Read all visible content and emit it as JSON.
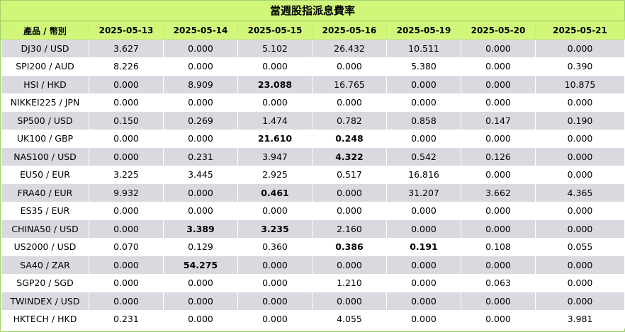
{
  "title": "當週股指派息費率",
  "header": {
    "product": "產品 / 幣別",
    "dates": [
      "2025-05-13",
      "2025-05-14",
      "2025-05-15",
      "2025-05-16",
      "2025-05-19",
      "2025-05-20",
      "2025-05-21"
    ]
  },
  "rows": [
    {
      "product": "DJ30 / USD",
      "values": [
        "3.627",
        "0.000",
        "5.102",
        "26.432",
        "10.511",
        "0.000",
        "0.000"
      ],
      "bold": []
    },
    {
      "product": "SPI200 / AUD",
      "values": [
        "8.226",
        "0.000",
        "0.000",
        "0.000",
        "5.380",
        "0.000",
        "0.390"
      ],
      "bold": []
    },
    {
      "product": "HSI / HKD",
      "values": [
        "0.000",
        "8.909",
        "23.088",
        "16.765",
        "0.000",
        "0.000",
        "10.875"
      ],
      "bold": [
        2
      ]
    },
    {
      "product": "NIKKEI225 / JPN",
      "values": [
        "0.000",
        "0.000",
        "0.000",
        "0.000",
        "0.000",
        "0.000",
        "0.000"
      ],
      "bold": []
    },
    {
      "product": "SP500 / USD",
      "values": [
        "0.150",
        "0.269",
        "1.474",
        "0.782",
        "0.858",
        "0.147",
        "0.190"
      ],
      "bold": []
    },
    {
      "product": "UK100 / GBP",
      "values": [
        "0.000",
        "0.000",
        "21.610",
        "0.248",
        "0.000",
        "0.000",
        "0.000"
      ],
      "bold": [
        2,
        3
      ]
    },
    {
      "product": "NAS100 / USD",
      "values": [
        "0.000",
        "0.231",
        "3.947",
        "4.322",
        "0.542",
        "0.126",
        "0.000"
      ],
      "bold": [
        3
      ]
    },
    {
      "product": "EU50 / EUR",
      "values": [
        "3.225",
        "3.445",
        "2.925",
        "0.517",
        "16.816",
        "0.000",
        "0.000"
      ],
      "bold": []
    },
    {
      "product": "FRA40 / EUR",
      "values": [
        "9.932",
        "0.000",
        "0.461",
        "0.000",
        "31.207",
        "3.662",
        "4.365"
      ],
      "bold": [
        2
      ]
    },
    {
      "product": "ES35 / EUR",
      "values": [
        "0.000",
        "0.000",
        "0.000",
        "0.000",
        "0.000",
        "0.000",
        "0.000"
      ],
      "bold": []
    },
    {
      "product": "CHINA50 / USD",
      "values": [
        "0.000",
        "3.389",
        "3.235",
        "2.160",
        "0.000",
        "0.000",
        "0.000"
      ],
      "bold": [
        1,
        2
      ]
    },
    {
      "product": "US2000 / USD",
      "values": [
        "0.070",
        "0.129",
        "0.360",
        "0.386",
        "0.191",
        "0.108",
        "0.055"
      ],
      "bold": [
        3,
        4
      ]
    },
    {
      "product": "SA40 / ZAR",
      "values": [
        "0.000",
        "54.275",
        "0.000",
        "0.000",
        "0.000",
        "0.000",
        "0.000"
      ],
      "bold": [
        1
      ]
    },
    {
      "product": "SGP20 / SGD",
      "values": [
        "0.000",
        "0.000",
        "0.000",
        "1.210",
        "0.000",
        "0.063",
        "0.000"
      ],
      "bold": []
    },
    {
      "product": "TWINDEX / USD",
      "values": [
        "0.000",
        "0.000",
        "0.000",
        "0.000",
        "0.000",
        "0.000",
        "0.000"
      ],
      "bold": []
    },
    {
      "product": "HKTECH / HKD",
      "values": [
        "0.231",
        "0.000",
        "0.000",
        "4.055",
        "0.000",
        "0.000",
        "3.981"
      ],
      "bold": []
    }
  ]
}
